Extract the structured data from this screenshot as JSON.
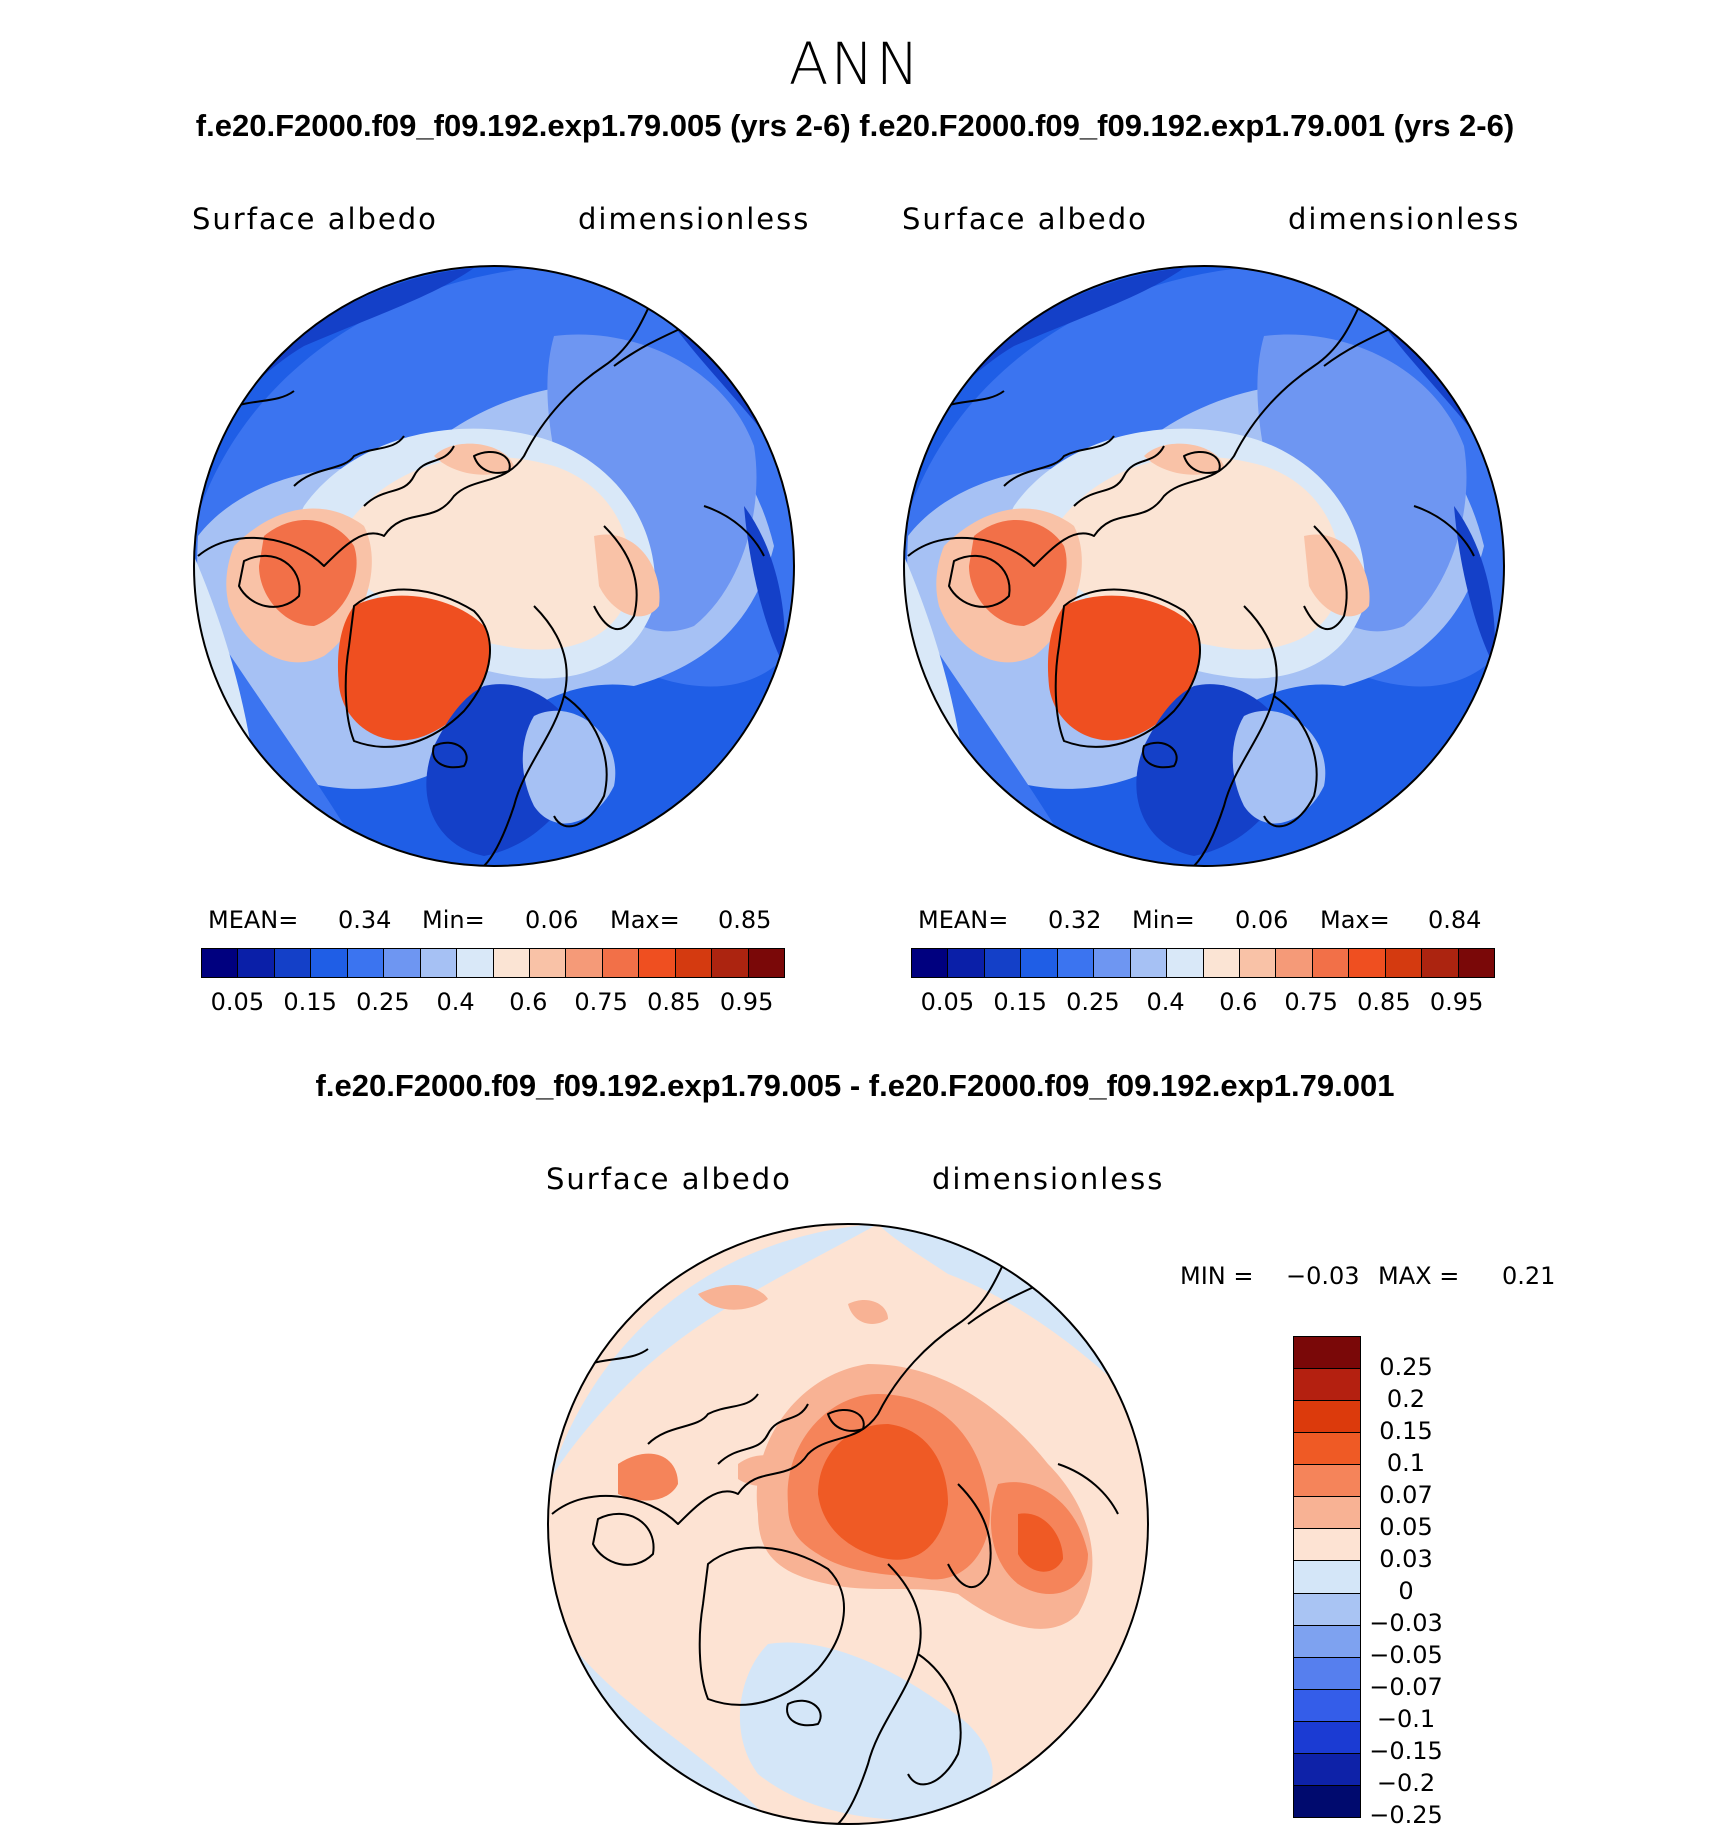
{
  "figure": {
    "season": "ANN",
    "case_titles": "f.e20.F2000.f09_f09.192.exp1.79.005 (yrs 2-6) f.e20.F2000.f09_f09.192.exp1.79.001 (yrs 2-6)",
    "diff_title": "f.e20.F2000.f09_f09.192.exp1.79.005 - f.e20.F2000.f09_f09.192.exp1.79.001"
  },
  "panels": [
    {
      "variable": "Surface albedo",
      "units": "dimensionless",
      "stats": {
        "mean_label": "MEAN=",
        "mean": "0.34",
        "min_label": "Min=",
        "min": "0.06",
        "max_label": "Max=",
        "max": "0.85"
      }
    },
    {
      "variable": "Surface albedo",
      "units": "dimensionless",
      "stats": {
        "mean_label": "MEAN=",
        "mean": "0.32",
        "min_label": "Min=",
        "min": "0.06",
        "max_label": "Max=",
        "max": "0.84"
      }
    },
    {
      "variable": "Surface albedo",
      "units": "dimensionless",
      "stats": {
        "min_label": "MIN =",
        "min": "−0.03",
        "max_label": "MAX =",
        "max": "0.21"
      }
    }
  ],
  "colorbar_main": {
    "colors": [
      "#00007f",
      "#0a1fa8",
      "#1440c8",
      "#1f5ee6",
      "#3b74f0",
      "#6e96f2",
      "#a6c1f4",
      "#d9e8f8",
      "#fbe4d4",
      "#f9c2a7",
      "#f59a78",
      "#f27048",
      "#ef4f20",
      "#d43a10",
      "#ac2410",
      "#7a0808"
    ],
    "tick_labels": [
      "0.05",
      "0.15",
      "0.25",
      "0.4",
      "0.6",
      "0.75",
      "0.85",
      "0.95"
    ]
  },
  "colorbar_diff": {
    "colors_top_to_bottom": [
      "#7a0808",
      "#b42010",
      "#dc3a0c",
      "#ef5a25",
      "#f5845a",
      "#f8b294",
      "#fde3d3",
      "#d4e6f8",
      "#a9c4f3",
      "#7ea2f0",
      "#567fee",
      "#345de9",
      "#1b3bd3",
      "#0e22a8",
      "#000a6e"
    ],
    "tick_labels": [
      "0.25",
      "0.2",
      "0.15",
      "0.1",
      "0.07",
      "0.05",
      "0.03",
      "0",
      "−0.03",
      "−0.05",
      "−0.07",
      "−0.1",
      "−0.15",
      "−0.2",
      "−0.25"
    ]
  }
}
